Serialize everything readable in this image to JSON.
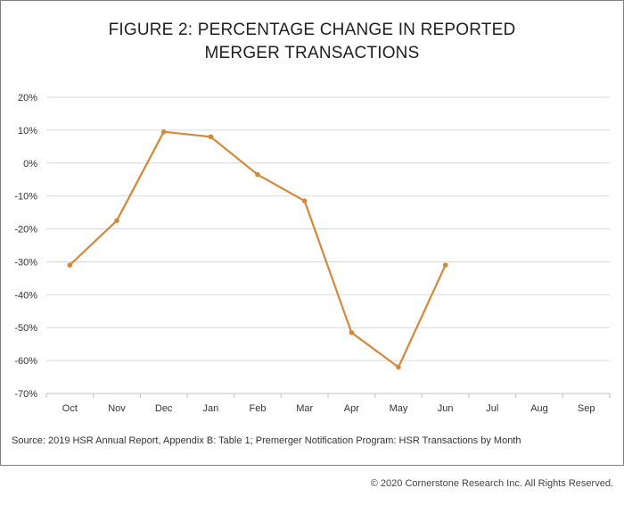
{
  "chart_data": {
    "type": "line",
    "title_lines": [
      "FIGURE 2: PERCENTAGE CHANGE IN REPORTED",
      "MERGER TRANSACTIONS"
    ],
    "categories": [
      "Oct",
      "Nov",
      "Dec",
      "Jan",
      "Feb",
      "Mar",
      "Apr",
      "May",
      "Jun",
      "Jul",
      "Aug",
      "Sep"
    ],
    "series": [
      {
        "values": [
          -31,
          -17.5,
          9.5,
          8,
          -3.5,
          -11.5,
          -51.5,
          -62,
          -31,
          null,
          null,
          null
        ],
        "color": "#d4883a"
      }
    ],
    "ylim": [
      -70,
      20
    ],
    "yticks": [
      20,
      10,
      0,
      -10,
      -20,
      -30,
      -40,
      -50,
      -60,
      -70
    ],
    "ytick_labels": [
      "20%",
      "10%",
      "0%",
      "-10%",
      "-20%",
      "-30%",
      "-40%",
      "-50%",
      "-60%",
      "-70%"
    ],
    "grid": true,
    "xlabel": "",
    "ylabel": ""
  },
  "source_note": "Source: 2019 HSR Annual Report, Appendix B: Table 1; Premerger Notification Program: HSR Transactions by Month",
  "copyright": "© 2020 Cornerstone Research Inc. All Rights Reserved.",
  "colors": {
    "line": "#d4883a",
    "grid": "#d9d9d9",
    "axis": "#bfbfbf"
  }
}
